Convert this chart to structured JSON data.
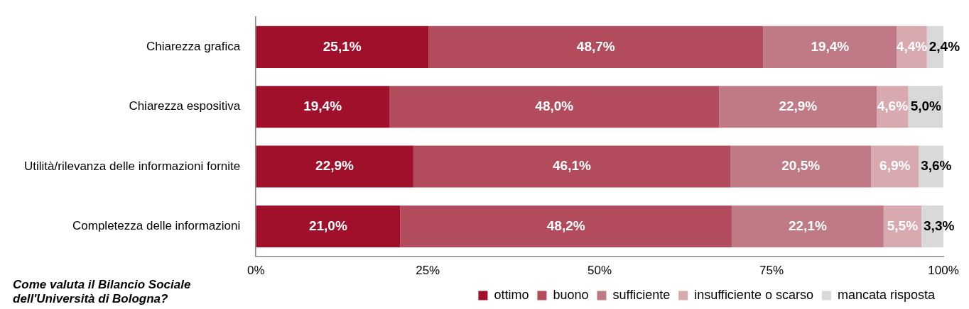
{
  "chart_data": {
    "type": "bar",
    "orientation": "horizontal",
    "stacked": true,
    "title": "Come valuta il Bilancio Sociale dell'Università di Bologna?",
    "categories": [
      "Chiarezza grafica",
      "Chiarezza espositiva",
      "Utilità/rilevanza delle informazioni fornite",
      "Completezza delle informazioni"
    ],
    "series": [
      {
        "name": "ottimo",
        "color": "#a0102a",
        "values": [
          25.1,
          19.4,
          22.9,
          21.0
        ],
        "value_labels": [
          "25,1%",
          "19,4%",
          "22,9%",
          "21,0%"
        ]
      },
      {
        "name": "buono",
        "color": "#b24c5c",
        "values": [
          48.7,
          48.0,
          46.1,
          48.2
        ],
        "value_labels": [
          "48,7%",
          "48,0%",
          "46,1%",
          "48,2%"
        ]
      },
      {
        "name": "sufficiente",
        "color": "#c07a85",
        "values": [
          19.4,
          22.9,
          20.5,
          22.1
        ],
        "value_labels": [
          "19,4%",
          "22,9%",
          "20,5%",
          "22,1%"
        ]
      },
      {
        "name": "insufficiente o scarso",
        "color": "#d9a9b0",
        "values": [
          4.4,
          4.6,
          6.9,
          5.5
        ],
        "value_labels": [
          "4,4%",
          "4,6%",
          "6,9%",
          "5,5%"
        ]
      },
      {
        "name": "mancata risposta",
        "color": "#d9d9d9",
        "values": [
          2.4,
          5.0,
          3.6,
          3.3
        ],
        "value_labels": [
          "2,4%",
          "5,0%",
          "3,6%",
          "3,3%"
        ]
      }
    ],
    "xlim": [
      0,
      100
    ],
    "xticks": [
      {
        "value": 0,
        "label": "0%"
      },
      {
        "value": 25,
        "label": "25%"
      },
      {
        "value": 50,
        "label": "50%"
      },
      {
        "value": 75,
        "label": "75%"
      },
      {
        "value": 100,
        "label": "100%"
      }
    ],
    "grid": false,
    "legend": "bottom"
  }
}
